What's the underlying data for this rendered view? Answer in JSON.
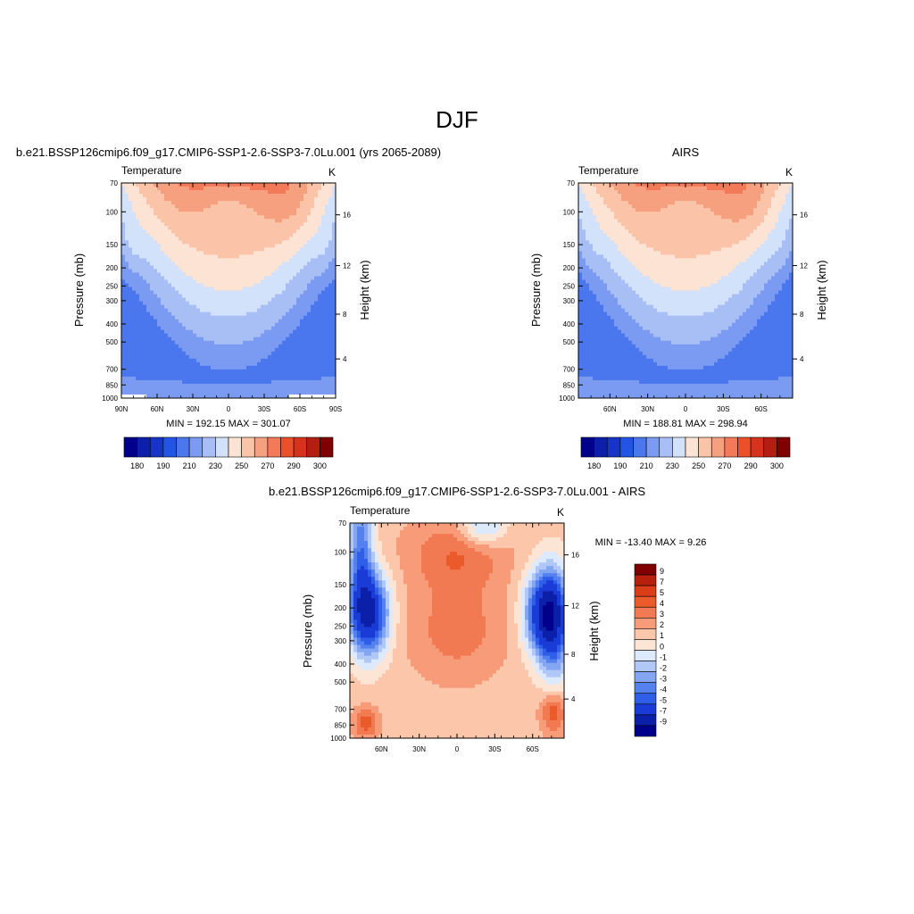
{
  "figure": {
    "title": "DJF",
    "y_axis": {
      "left_label": "Pressure (mb)",
      "left_ticks": [
        "70",
        "100",
        "150",
        "200",
        "250",
        "300",
        "400",
        "500",
        "700",
        "850",
        "1000"
      ],
      "right_label": "Height (km)",
      "right_ticks": [
        "16",
        "12",
        "8",
        "4"
      ],
      "scale": "log-pressure"
    }
  },
  "chart_data": [
    {
      "type": "heatmap",
      "panel": "model",
      "title": "b.e21.BSSP126cmip6.f09_g17.CMIP6-SSP1-2.6-SSP3-7.0Lu.001 (yrs 2065-2089)",
      "left_string": "Temperature",
      "right_string": "K",
      "xlabel": "",
      "ylabel": "Pressure (mb)",
      "ylabel_right": "Height (km)",
      "x_ticks": [
        "90N",
        "60N",
        "30N",
        "0",
        "30S",
        "60S",
        "90S"
      ],
      "ylim": [
        1000,
        70
      ],
      "stats": "MIN = 192.15  MAX = 301.07",
      "min": 192.15,
      "max": 301.07,
      "levels": [
        180,
        185,
        190,
        200,
        210,
        220,
        230,
        240,
        250,
        260,
        270,
        280,
        290,
        295,
        300
      ],
      "colorbar_labels": [
        "180",
        "190",
        "210",
        "230",
        "250",
        "270",
        "290",
        "300"
      ],
      "colorbar_orientation": "horizontal"
    },
    {
      "type": "heatmap",
      "panel": "obs",
      "title": "AIRS",
      "left_string": "Temperature",
      "right_string": "K",
      "xlabel": "",
      "ylabel": "Pressure (mb)",
      "ylabel_right": "Height (km)",
      "x_ticks": [
        "60N",
        "30N",
        "0",
        "30S",
        "60S"
      ],
      "ylim": [
        1000,
        70
      ],
      "stats": "MIN = 188.81  MAX = 298.94",
      "min": 188.81,
      "max": 298.94,
      "levels": [
        180,
        185,
        190,
        200,
        210,
        220,
        230,
        240,
        250,
        260,
        270,
        280,
        290,
        295,
        300
      ],
      "colorbar_labels": [
        "180",
        "190",
        "210",
        "230",
        "250",
        "270",
        "290",
        "300"
      ],
      "colorbar_orientation": "horizontal"
    },
    {
      "type": "heatmap",
      "panel": "difference",
      "title": "b.e21.BSSP126cmip6.f09_g17.CMIP6-SSP1-2.6-SSP3-7.0Lu.001 - AIRS",
      "left_string": "Temperature",
      "right_string": "K",
      "xlabel": "",
      "ylabel": "Pressure (mb)",
      "ylabel_right": "Height (km)",
      "x_ticks": [
        "60N",
        "30N",
        "0",
        "30S",
        "60S"
      ],
      "ylim": [
        1000,
        70
      ],
      "stats": "MIN = -13.40  MAX =   9.26",
      "min": -13.4,
      "max": 9.26,
      "levels": [
        -9,
        -7,
        -5,
        -4,
        -3,
        -2,
        -1,
        0,
        1,
        2,
        3,
        4,
        5,
        7,
        9
      ],
      "colorbar_labels": [
        "9",
        "7",
        "5",
        "4",
        "3",
        "2",
        "1",
        "0",
        "-1",
        "-2",
        "-3",
        "-4",
        "-5",
        "-7",
        "-9"
      ],
      "colorbar_orientation": "vertical"
    }
  ],
  "colors": {
    "temperature_palette": [
      "#00008b",
      "#0b1fa8",
      "#1733c8",
      "#2454e6",
      "#4a77ee",
      "#7a9bf1",
      "#a8bff6",
      "#d3e2fb",
      "#fde3d4",
      "#fbc4a8",
      "#f7a080",
      "#f37a58",
      "#ec5028",
      "#d8321c",
      "#b41e12",
      "#800000"
    ],
    "difference_palette": [
      "#00008b",
      "#0b1fa8",
      "#1a3bd6",
      "#2f5fe9",
      "#5581ee",
      "#84a5f2",
      "#b1c8f7",
      "#dde9fc",
      "#fde5d6",
      "#fbc6aa",
      "#f79b78",
      "#f27a52",
      "#ea5a2b",
      "#da3d18",
      "#b8200e",
      "#800000"
    ],
    "missing": "#ffffff",
    "frame": "#000000"
  }
}
